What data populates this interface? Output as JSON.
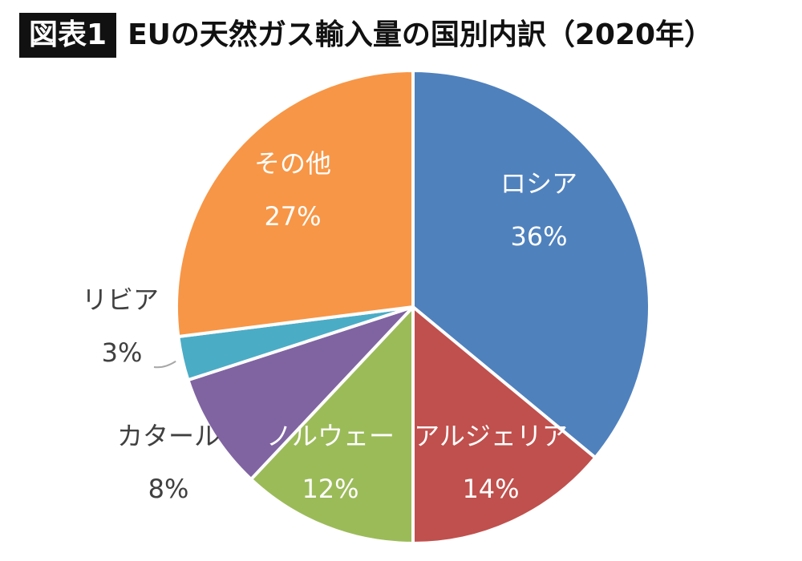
{
  "header": {
    "badge": "図表1",
    "title": "EUの天然ガス輸入量の国別内訳（2020年）"
  },
  "chart_data": {
    "type": "pie",
    "title": "EUの天然ガス輸入量の国別内訳（2020年）",
    "slices": [
      {
        "name": "ロシア",
        "value": 36,
        "label": "36%",
        "color": "#4f81bd"
      },
      {
        "name": "アルジェリア",
        "value": 14,
        "label": "14%",
        "color": "#c0504d"
      },
      {
        "name": "ノルウェー",
        "value": 12,
        "label": "12%",
        "color": "#9bbb59"
      },
      {
        "name": "カタール",
        "value": 8,
        "label": "8%",
        "color": "#8064a2"
      },
      {
        "name": "リビア",
        "value": 3,
        "label": "3%",
        "color": "#4bacc6"
      },
      {
        "name": "その他",
        "value": 27,
        "label": "27%",
        "color": "#f79646"
      }
    ],
    "start": "12 o'clock",
    "direction": "clockwise"
  }
}
